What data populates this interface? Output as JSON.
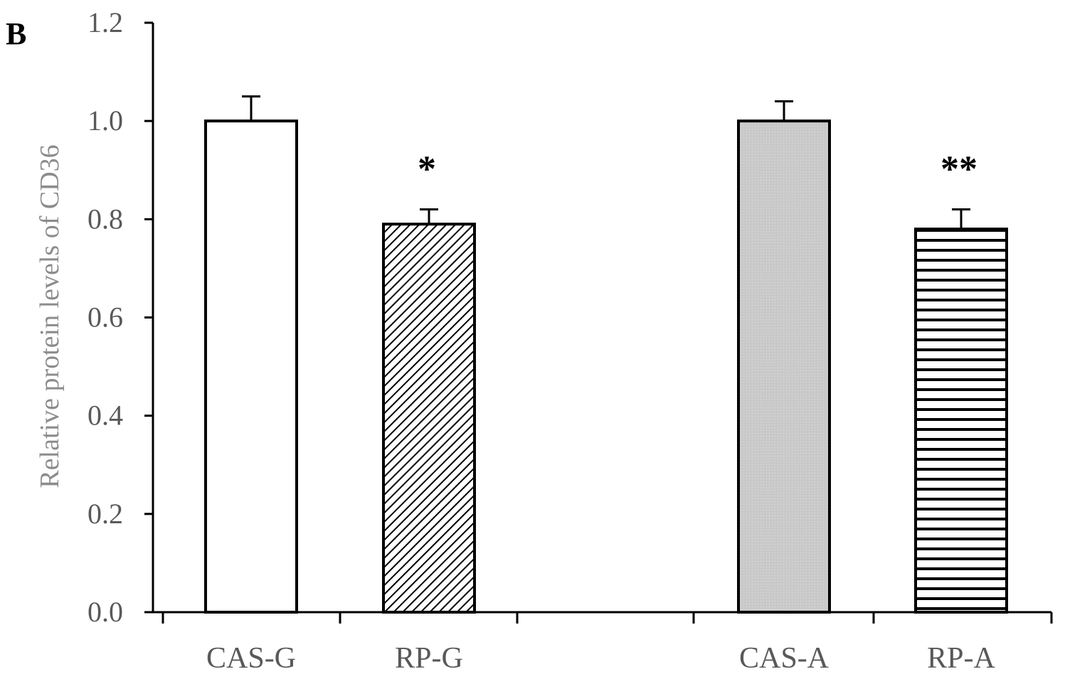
{
  "panel_label": "B",
  "chart_data": {
    "type": "bar",
    "ylabel": "Relative protein levels of CD36",
    "xlabel": "",
    "ylim": [
      0,
      1.2
    ],
    "yticks": [
      "0.0",
      "0.2",
      "0.4",
      "0.6",
      "0.8",
      "1.0",
      "1.2"
    ],
    "grid": false,
    "categories": [
      "CAS-G",
      "RP-G",
      "CAS-A",
      "RP-A"
    ],
    "values": [
      1.0,
      0.79,
      1.0,
      0.78
    ],
    "errors": [
      0.05,
      0.03,
      0.04,
      0.04
    ],
    "fills": [
      "white",
      "diagonal-hatch",
      "light-gray-dots",
      "horizontal-lines"
    ],
    "significance": [
      "",
      "*",
      "",
      "**"
    ],
    "colors": {
      "axis": "#000000",
      "bar_stroke": "#000000",
      "gray_fill": "#c9c9c9"
    }
  }
}
